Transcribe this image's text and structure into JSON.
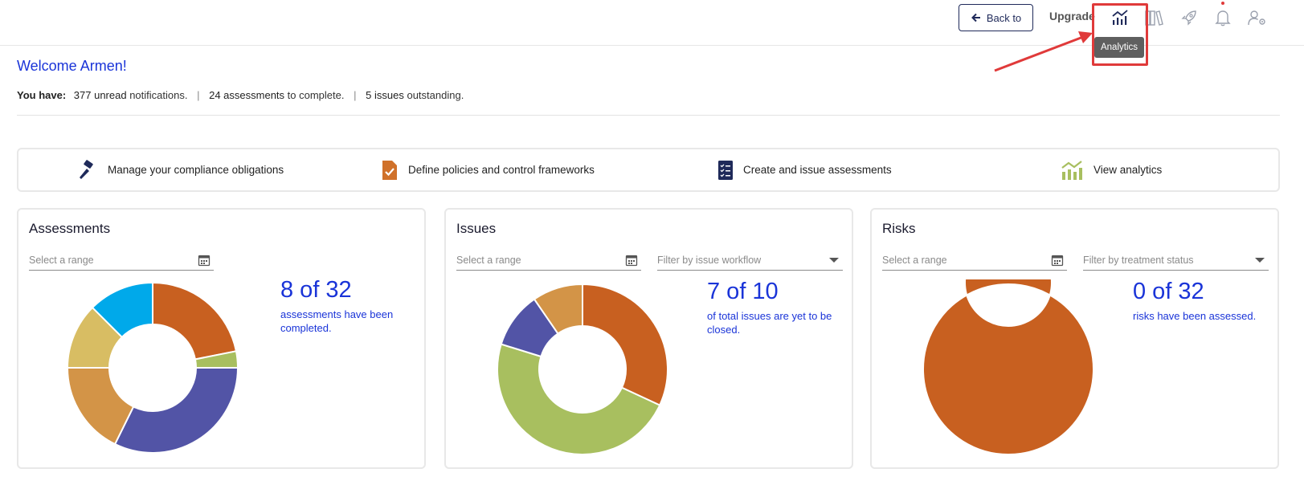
{
  "header": {
    "back_label": "Back to",
    "upgrade_label": "Upgrade",
    "tooltip": "Analytics",
    "icons": [
      "analytics-icon",
      "library-icon",
      "rocket-icon",
      "bell-icon",
      "user-settings-icon"
    ]
  },
  "welcome": "Welcome Armen!",
  "summary": {
    "label": "You have:",
    "notifications_count": "377 unread",
    "notifications_text": "notifications.",
    "assessments_count": "24 assessments",
    "assessments_text": "to complete.",
    "issues_count": "5 issues",
    "issues_text": "outstanding.",
    "separator": "|"
  },
  "actions": [
    {
      "label": "Manage your compliance obligations",
      "icon": "gavel-icon"
    },
    {
      "label": "Define policies and control frameworks",
      "icon": "policy-doc-icon"
    },
    {
      "label": "Create and issue assessments",
      "icon": "checklist-icon"
    },
    {
      "label": "View analytics",
      "icon": "analytics-chart-icon"
    }
  ],
  "cards": {
    "assessments": {
      "title": "Assessments",
      "range_placeholder": "Select a range",
      "stat": "8 of 32",
      "stat_text_1": "assessments have been",
      "stat_text_2": "completed."
    },
    "issues": {
      "title": "Issues",
      "range_placeholder": "Select a range",
      "filter_placeholder": "Filter by issue workflow",
      "stat": "7 of 10",
      "stat_text_1": "of total issues are yet to be",
      "stat_text_2": "closed."
    },
    "risks": {
      "title": "Risks",
      "range_placeholder": "Select a range",
      "filter_placeholder": "Filter by treatment status",
      "stat": "0 of 32",
      "stat_text_1": "risks have been assessed."
    }
  },
  "colors": {
    "accent_blue": "#1a34d8",
    "orange": "#c86020",
    "green": "#a8bf5f",
    "purple": "#5254a6",
    "tan": "#d39447",
    "yellow": "#d8bd63",
    "cyan": "#00a9ea",
    "highlight_red": "#e03a3a"
  },
  "chart_data": [
    {
      "type": "pie",
      "values": [
        21,
        3,
        31,
        17,
        12,
        12
      ],
      "colors": [
        "#c86020",
        "#a8bf5f",
        "#5254a6",
        "#d39447",
        "#d8bd63",
        "#00a9ea"
      ]
    },
    {
      "type": "pie",
      "values": [
        30,
        45,
        10,
        9
      ],
      "colors": [
        "#c86020",
        "#a8bf5f",
        "#5254a6",
        "#d39447"
      ]
    },
    {
      "type": "pie",
      "values": [
        100
      ],
      "colors": [
        "#c86020"
      ]
    }
  ]
}
